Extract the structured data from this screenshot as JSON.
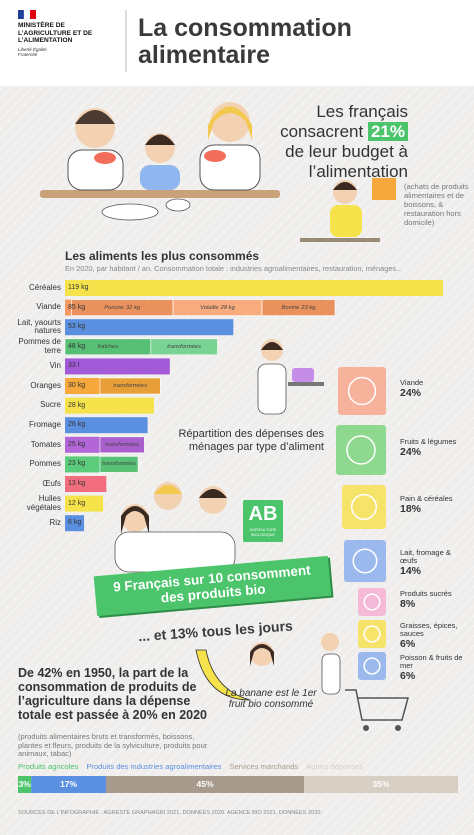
{
  "header": {
    "ministry": "MINISTÈRE DE L’AGRICULTURE ET DE L’ALIMENTATION",
    "motto": "Liberté Égalité Fraternité",
    "title": "La consommation alimentaire"
  },
  "budget": {
    "text_before": "Les français consacrent",
    "value": 21,
    "value_label": "21%",
    "text_after": "de leur budget à l’alimentation",
    "note": "(achats de produits alimentaires et de boissons, & restauration hors domicile)"
  },
  "bio": {
    "logo": "AB",
    "logo_caption": "AGRICULTURE BIOLOGIQUE",
    "headline": "9 Français sur 10 consomment des produits bio",
    "daily": "... et 13% tous les jours",
    "banana": "La banane est le 1er fruit bio consommé"
  },
  "agriculture_share": {
    "text": "De 42% en 1950, la part de la consommation de produits de l’agriculture dans la dépense totale est passée à 20% en 2020",
    "note": "(produits alimentaires bruts et transformés, boissons, plantes et fleurs, produits de la sylviculture, produits pour animaux, tabac)"
  },
  "source": "SOURCES DE L’INFOGRAPHIE : AGRESTE GRAPHAGRI 2021, DONNÉES 2020. AGENCE BIO 2021, DONNÉES 2020.",
  "chart_data": [
    {
      "type": "bar",
      "orientation": "horizontal",
      "title": "Les aliments les plus consommés",
      "subtitle": "En 2020, par habitant / an. Consommation totale : industries agroalimentaires, restauration, ménages...",
      "categories": [
        "Céréales",
        "Viande",
        "Lait, yaourts natures",
        "Pommes de terre",
        "Vin",
        "Oranges",
        "Sucre",
        "Fromage",
        "Tomates",
        "Pommes",
        "Œufs",
        "Huiles végétales",
        "Riz"
      ],
      "values": [
        119,
        85,
        53,
        48,
        33,
        30,
        28,
        26,
        25,
        23,
        13,
        12,
        6
      ],
      "value_labels": [
        "119 kg",
        "85 kg",
        "53 kg",
        "48 kg",
        "33 l",
        "30 kg",
        "28 kg",
        "26 kg",
        "25 kg",
        "23 kg",
        "13 kg",
        "12 kg",
        "6 kg"
      ],
      "colors": [
        "#f6e34b",
        "#f79a62",
        "#5b8fe0",
        "#5ccb7c",
        "#a35ad8",
        "#f6a83c",
        "#f6e34b",
        "#5b8fe0",
        "#b366d8",
        "#5ccb7c",
        "#f26e7e",
        "#f6e34b",
        "#5b8fe0"
      ],
      "segments": [
        null,
        [
          {
            "name": "Porcine",
            "value": 32,
            "value_label": "32 kg"
          },
          {
            "name": "Volaille",
            "value": 28,
            "value_label": "28 kg"
          },
          {
            "name": "Bovine",
            "value": 23,
            "value_label": "23 kg"
          }
        ],
        null,
        [
          {
            "name": "fraîches",
            "value": 27
          },
          {
            "name": "transformées",
            "value": 21
          }
        ],
        null,
        [
          {
            "name": "transformées",
            "value": 19
          }
        ],
        null,
        null,
        [
          {
            "name": "transformées",
            "value": 14
          }
        ],
        [
          {
            "name": "transformées",
            "value": 12
          }
        ],
        null,
        null,
        null
      ]
    },
    {
      "type": "icon-list",
      "title": "Répartition des dépenses des ménages par type d’aliment",
      "categories": [
        "Viande",
        "Fruits & légumes",
        "Pain & céréales",
        "Lait, fromage & œufs",
        "Produits sucrés",
        "Graisses, épices, sauces",
        "Poisson & fruits de mer"
      ],
      "values": [
        24,
        24,
        18,
        14,
        8,
        6,
        6
      ],
      "value_labels": [
        "24%",
        "24%",
        "18%",
        "14%",
        "8%",
        "6%",
        "6%"
      ],
      "colors": [
        "#f7b29c",
        "#8ed88f",
        "#f6e36a",
        "#9cb9ee",
        "#f5bad8",
        "#f6e36a",
        "#9cb9ee"
      ]
    },
    {
      "type": "stacked-bar",
      "series": [
        {
          "name": "Produits agricoles",
          "color": "#4cc46c",
          "values": [
            3
          ],
          "value_labels": [
            "3%"
          ]
        },
        {
          "name": "Produits des industries agroalimentaires",
          "color": "#5b8fe0",
          "values": [
            17
          ],
          "value_labels": [
            "17%"
          ]
        },
        {
          "name": "Services marchands",
          "color": "#a89b8d",
          "values": [
            45
          ],
          "value_labels": [
            "45%"
          ]
        },
        {
          "name": "Autres dépenses",
          "color": "#d8cfc4",
          "values": [
            35
          ],
          "value_labels": [
            "35%"
          ]
        }
      ]
    }
  ]
}
